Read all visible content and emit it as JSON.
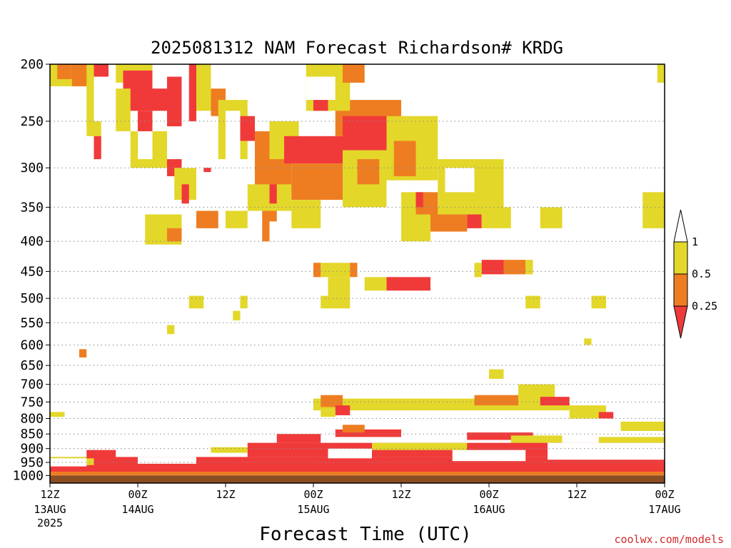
{
  "title": "2025081312 NAM Forecast Richardson# KRDG",
  "credit": "coolwx.com/models",
  "colors": {
    "lt_0_25": "#f03a3a",
    "from_0_25_to_0_5": "#ee7d22",
    "from_0_5_to_1": "#e3d72a",
    "ground": "#8b4d22",
    "credit": "#d22a2a"
  },
  "chart_data": {
    "type": "heatmap",
    "title": "2025081312 NAM Forecast Richardson# KRDG",
    "xlabel": "Forecast Time (UTC)",
    "ylabel": "",
    "x_range_hours": [
      0,
      84
    ],
    "y_range_hpa": [
      200,
      1030
    ],
    "y_scale": "log",
    "grid": "horizontal dotted lines at each pressure level",
    "pressure_levels": [
      200,
      250,
      300,
      350,
      400,
      450,
      500,
      550,
      600,
      650,
      700,
      750,
      800,
      850,
      900,
      950,
      1000
    ],
    "x_ticks": [
      {
        "hour": 0,
        "label": "12Z",
        "date": "13AUG",
        "year": "2025"
      },
      {
        "hour": 12,
        "label": "00Z",
        "date": "14AUG",
        "year": ""
      },
      {
        "hour": 24,
        "label": "12Z",
        "date": "",
        "year": ""
      },
      {
        "hour": 36,
        "label": "00Z",
        "date": "15AUG",
        "year": ""
      },
      {
        "hour": 48,
        "label": "12Z",
        "date": "",
        "year": ""
      },
      {
        "hour": 60,
        "label": "00Z",
        "date": "16AUG",
        "year": ""
      },
      {
        "hour": 72,
        "label": "12Z",
        "date": "",
        "year": ""
      },
      {
        "hour": 84,
        "label": "00Z",
        "date": "17AUG",
        "year": ""
      }
    ],
    "legend": {
      "placement": "right",
      "levels": [
        "0.25",
        "0.5",
        "1"
      ]
    },
    "categories": [
      "<0.25",
      "0.25-0.5",
      "0.5-1"
    ],
    "regions": [
      {
        "class": "0.5-1",
        "t0": 0,
        "t1": 6,
        "p0": 200,
        "p1": 218
      },
      {
        "class": "0.25-0.5",
        "t0": 1,
        "t1": 3,
        "p0": 200,
        "p1": 212
      },
      {
        "class": "0.25-0.5",
        "t0": 3,
        "t1": 5,
        "p0": 200,
        "p1": 218
      },
      {
        "class": "<0.25",
        "t0": 6,
        "t1": 8,
        "p0": 200,
        "p1": 210
      },
      {
        "class": "0.5-1",
        "t0": 5,
        "t1": 6,
        "p0": 215,
        "p1": 255
      },
      {
        "class": "0.5-1",
        "t0": 5,
        "t1": 7,
        "p0": 250,
        "p1": 265
      },
      {
        "class": "<0.25",
        "t0": 6,
        "t1": 7,
        "p0": 265,
        "p1": 290
      },
      {
        "class": "0.5-1",
        "t0": 9,
        "t1": 14,
        "p0": 200,
        "p1": 215
      },
      {
        "class": "<0.25",
        "t0": 10,
        "t1": 14,
        "p0": 205,
        "p1": 240
      },
      {
        "class": "0.5-1",
        "t0": 9,
        "t1": 11,
        "p0": 220,
        "p1": 260
      },
      {
        "class": "<0.25",
        "t0": 14,
        "t1": 16,
        "p0": 220,
        "p1": 240
      },
      {
        "class": "<0.25",
        "t0": 12,
        "t1": 14,
        "p0": 240,
        "p1": 275
      },
      {
        "class": "0.5-1",
        "t0": 11,
        "t1": 16,
        "p0": 260,
        "p1": 300
      },
      {
        "class": "<0.25",
        "t0": 16,
        "t1": 18,
        "p0": 290,
        "p1": 310
      },
      {
        "class": "0.5-1",
        "t0": 17,
        "t1": 20,
        "p0": 300,
        "p1": 340
      },
      {
        "class": "<0.25",
        "t0": 18,
        "t1": 19,
        "p0": 320,
        "p1": 345
      },
      {
        "class": "<0.25",
        "t0": 16,
        "t1": 18,
        "p0": 210,
        "p1": 255
      },
      {
        "class": "<0.25",
        "t0": 19,
        "t1": 20,
        "p0": 200,
        "p1": 250
      },
      {
        "class": "0.5-1",
        "t0": 20,
        "t1": 22,
        "p0": 200,
        "p1": 240
      },
      {
        "class": "<0.25",
        "t0": 21,
        "t1": 22,
        "p0": 290,
        "p1": 305
      },
      {
        "class": "0.25-0.5",
        "t0": 22,
        "t1": 24,
        "p0": 220,
        "p1": 245
      },
      {
        "class": "0.5-1",
        "t0": 23,
        "t1": 27,
        "p0": 230,
        "p1": 290
      },
      {
        "class": "<0.25",
        "t0": 26,
        "t1": 28,
        "p0": 245,
        "p1": 270
      },
      {
        "class": "0.5-1",
        "t0": 28,
        "t1": 30,
        "p0": 270,
        "p1": 320
      },
      {
        "class": "0.25-0.5",
        "t0": 28,
        "t1": 33,
        "p0": 260,
        "p1": 330
      },
      {
        "class": "0.5-1",
        "t0": 27,
        "t1": 33,
        "p0": 320,
        "p1": 355
      },
      {
        "class": "0.25-0.5",
        "t0": 29,
        "t1": 31,
        "p0": 355,
        "p1": 400
      },
      {
        "class": "<0.25",
        "t0": 30,
        "t1": 31,
        "p0": 320,
        "p1": 345
      },
      {
        "class": "0.25-0.5",
        "t0": 20,
        "t1": 23,
        "p0": 355,
        "p1": 380
      },
      {
        "class": "0.5-1",
        "t0": 24,
        "t1": 27,
        "p0": 355,
        "p1": 380
      },
      {
        "class": "0.5-1",
        "t0": 13,
        "t1": 18,
        "p0": 360,
        "p1": 405
      },
      {
        "class": "0.25-0.5",
        "t0": 16,
        "t1": 18,
        "p0": 380,
        "p1": 400
      },
      {
        "class": "0.5-1",
        "t0": 30,
        "t1": 34,
        "p0": 250,
        "p1": 290
      },
      {
        "class": "<0.25",
        "t0": 32,
        "t1": 47,
        "p0": 265,
        "p1": 295
      },
      {
        "class": "0.25-0.5",
        "t0": 33,
        "t1": 40,
        "p0": 295,
        "p1": 340
      },
      {
        "class": "0.5-1",
        "t0": 33,
        "t1": 37,
        "p0": 340,
        "p1": 380
      },
      {
        "class": "0.25-0.5",
        "t0": 39,
        "t1": 48,
        "p0": 230,
        "p1": 265
      },
      {
        "class": "<0.25",
        "t0": 40,
        "t1": 48,
        "p0": 245,
        "p1": 290
      },
      {
        "class": "0.5-1",
        "t0": 35,
        "t1": 41,
        "p0": 200,
        "p1": 240
      },
      {
        "class": "<0.25",
        "t0": 36,
        "t1": 38,
        "p0": 215,
        "p1": 240
      },
      {
        "class": "0.25-0.5",
        "t0": 40,
        "t1": 43,
        "p0": 200,
        "p1": 215
      },
      {
        "class": "0.5-1",
        "t0": 40,
        "t1": 46,
        "p0": 280,
        "p1": 350
      },
      {
        "class": "0.25-0.5",
        "t0": 42,
        "t1": 45,
        "p0": 290,
        "p1": 320
      },
      {
        "class": "0.5-1",
        "t0": 46,
        "t1": 53,
        "p0": 245,
        "p1": 315
      },
      {
        "class": "0.25-0.5",
        "t0": 47,
        "t1": 50,
        "p0": 270,
        "p1": 310
      },
      {
        "class": "0.5-1",
        "t0": 48,
        "t1": 52,
        "p0": 330,
        "p1": 400
      },
      {
        "class": "0.25-0.5",
        "t0": 50,
        "t1": 53,
        "p0": 330,
        "p1": 360
      },
      {
        "class": "<0.25",
        "t0": 50,
        "t1": 51,
        "p0": 330,
        "p1": 350
      },
      {
        "class": "0.25-0.5",
        "t0": 52,
        "t1": 57,
        "p0": 350,
        "p1": 385
      },
      {
        "class": "<0.25",
        "t0": 57,
        "t1": 59,
        "p0": 350,
        "p1": 380
      },
      {
        "class": "0.5-1",
        "t0": 53,
        "t1": 62,
        "p0": 290,
        "p1": 360
      },
      {
        "class": "0.5-1",
        "t0": 59,
        "t1": 63,
        "p0": 350,
        "p1": 380
      },
      {
        "class": "0.5-1",
        "t0": 67,
        "t1": 70,
        "p0": 350,
        "p1": 380
      },
      {
        "class": "0.5-1",
        "t0": 81,
        "t1": 84,
        "p0": 330,
        "p1": 380
      },
      {
        "class": "0.5-1",
        "t0": 83,
        "t1": 84,
        "p0": 200,
        "p1": 215
      },
      {
        "class": "0.25-0.5",
        "t0": 36,
        "t1": 37,
        "p0": 435,
        "p1": 460
      },
      {
        "class": "0.5-1",
        "t0": 37,
        "t1": 41,
        "p0": 435,
        "p1": 460
      },
      {
        "class": "0.25-0.5",
        "t0": 41,
        "t1": 42,
        "p0": 435,
        "p1": 460
      },
      {
        "class": "0.5-1",
        "t0": 38,
        "t1": 41,
        "p0": 460,
        "p1": 495
      },
      {
        "class": "0.5-1",
        "t0": 37,
        "t1": 41,
        "p0": 495,
        "p1": 520
      },
      {
        "class": "0.5-1",
        "t0": 43,
        "t1": 46,
        "p0": 460,
        "p1": 485
      },
      {
        "class": "<0.25",
        "t0": 46,
        "t1": 52,
        "p0": 460,
        "p1": 485
      },
      {
        "class": "0.5-1",
        "t0": 58,
        "t1": 59,
        "p0": 435,
        "p1": 460
      },
      {
        "class": "<0.25",
        "t0": 59,
        "t1": 62,
        "p0": 430,
        "p1": 455
      },
      {
        "class": "0.25-0.5",
        "t0": 62,
        "t1": 65,
        "p0": 430,
        "p1": 455
      },
      {
        "class": "0.5-1",
        "t0": 65,
        "t1": 66,
        "p0": 430,
        "p1": 455
      },
      {
        "class": "0.5-1",
        "t0": 65,
        "t1": 67,
        "p0": 495,
        "p1": 520
      },
      {
        "class": "0.5-1",
        "t0": 74,
        "t1": 76,
        "p0": 495,
        "p1": 520
      },
      {
        "class": "0.5-1",
        "t0": 19,
        "t1": 21,
        "p0": 495,
        "p1": 520
      },
      {
        "class": "0.5-1",
        "t0": 26,
        "t1": 27,
        "p0": 495,
        "p1": 520
      },
      {
        "class": "0.5-1",
        "t0": 25,
        "t1": 26,
        "p0": 525,
        "p1": 545
      },
      {
        "class": "0.5-1",
        "t0": 16,
        "t1": 17,
        "p0": 555,
        "p1": 575
      },
      {
        "class": "0.25-0.5",
        "t0": 4,
        "t1": 5,
        "p0": 610,
        "p1": 630
      },
      {
        "class": "0.5-1",
        "t0": 73,
        "t1": 74,
        "p0": 585,
        "p1": 600
      },
      {
        "class": "0.5-1",
        "t0": 60,
        "t1": 62,
        "p0": 660,
        "p1": 685
      },
      {
        "class": "0.5-1",
        "t0": 0,
        "t1": 2,
        "p0": 780,
        "p1": 795
      },
      {
        "class": "0.5-1",
        "t0": 36,
        "t1": 55,
        "p0": 740,
        "p1": 775
      },
      {
        "class": "0.25-0.5",
        "t0": 37,
        "t1": 40,
        "p0": 730,
        "p1": 765
      },
      {
        "class": "<0.25",
        "t0": 39,
        "t1": 41,
        "p0": 760,
        "p1": 790
      },
      {
        "class": "0.5-1",
        "t0": 37,
        "t1": 39,
        "p0": 775,
        "p1": 795
      },
      {
        "class": "0.5-1",
        "t0": 55,
        "t1": 71,
        "p0": 740,
        "p1": 775
      },
      {
        "class": "0.25-0.5",
        "t0": 58,
        "t1": 64,
        "p0": 730,
        "p1": 760
      },
      {
        "class": "0.5-1",
        "t0": 64,
        "t1": 69,
        "p0": 700,
        "p1": 740
      },
      {
        "class": "<0.25",
        "t0": 67,
        "t1": 71,
        "p0": 735,
        "p1": 760
      },
      {
        "class": "0.5-1",
        "t0": 71,
        "t1": 76,
        "p0": 760,
        "p1": 800
      },
      {
        "class": "<0.25",
        "t0": 75,
        "t1": 77,
        "p0": 780,
        "p1": 800
      },
      {
        "class": "0.5-1",
        "t0": 78,
        "t1": 84,
        "p0": 810,
        "p1": 840
      },
      {
        "class": "<0.25",
        "t0": 39,
        "t1": 48,
        "p0": 835,
        "p1": 860
      },
      {
        "class": "0.25-0.5",
        "t0": 40,
        "t1": 43,
        "p0": 820,
        "p1": 845
      },
      {
        "class": "<0.25",
        "t0": 31,
        "t1": 37,
        "p0": 850,
        "p1": 880
      },
      {
        "class": "<0.25",
        "t0": 57,
        "t1": 66,
        "p0": 845,
        "p1": 870
      },
      {
        "class": "0.5-1",
        "t0": 63,
        "t1": 70,
        "p0": 855,
        "p1": 880
      },
      {
        "class": "0.5-1",
        "t0": 75,
        "t1": 84,
        "p0": 860,
        "p1": 900
      },
      {
        "class": "<0.25",
        "t0": 27,
        "t1": 84,
        "p0": 880,
        "p1": 930
      },
      {
        "class": "0.5-1",
        "t0": 44,
        "t1": 57,
        "p0": 880,
        "p1": 905
      },
      {
        "class": "<0.25",
        "t0": 0,
        "t1": 84,
        "p0": 930,
        "p1": 990
      },
      {
        "class": "0.5-1",
        "t0": 0,
        "t1": 6,
        "p0": 930,
        "p1": 960
      },
      {
        "class": "<0.25",
        "t0": 5,
        "t1": 9,
        "p0": 905,
        "p1": 935
      },
      {
        "class": "0.5-1",
        "t0": 22,
        "t1": 27,
        "p0": 895,
        "p1": 915
      },
      {
        "class": "0.25-0.5",
        "t0": 0,
        "t1": 84,
        "p0": 985,
        "p1": 1000
      }
    ],
    "holes": [
      {
        "t0": 18,
        "t1": 22,
        "p0": 255,
        "p1": 300
      },
      {
        "t0": 20,
        "t1": 27,
        "p0": 390,
        "p1": 420
      },
      {
        "t0": 30,
        "t1": 33,
        "p0": 370,
        "p1": 400
      },
      {
        "t0": 35,
        "t1": 39,
        "p0": 210,
        "p1": 230
      },
      {
        "t0": 12,
        "t1": 14,
        "p0": 260,
        "p1": 290
      },
      {
        "t0": 24,
        "t1": 26,
        "p0": 240,
        "p1": 300
      },
      {
        "t0": 54,
        "t1": 58,
        "p0": 300,
        "p1": 330
      },
      {
        "t0": 68,
        "t1": 84,
        "p0": 880,
        "p1": 940
      },
      {
        "t0": 55,
        "t1": 65,
        "p0": 905,
        "p1": 945
      },
      {
        "t0": 38,
        "t1": 44,
        "p0": 900,
        "p1": 935
      },
      {
        "t0": 12,
        "t1": 20,
        "p0": 930,
        "p1": 955
      },
      {
        "t0": 0,
        "t1": 5,
        "p0": 935,
        "p1": 965
      }
    ],
    "ground": {
      "from_hpa": 1000,
      "to_hpa": 1030
    }
  },
  "legend_labels": [
    "1",
    "0.5",
    "0.25"
  ]
}
